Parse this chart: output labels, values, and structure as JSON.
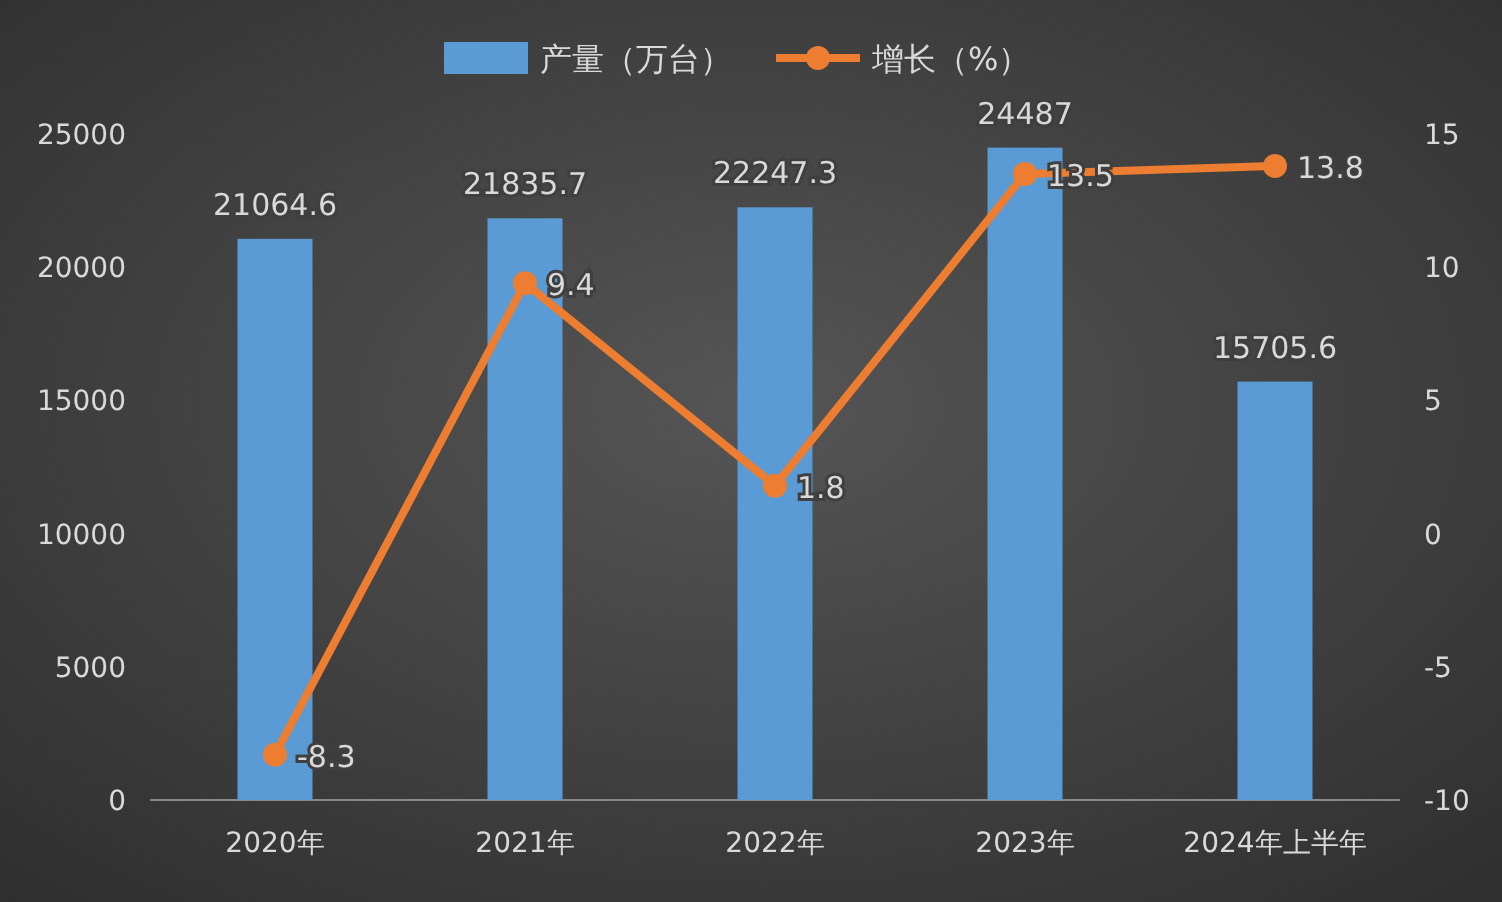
{
  "chart_data": {
    "type": "bar",
    "categories": [
      "2020年",
      "2021年",
      "2022年",
      "2023年",
      "2024年上半年"
    ],
    "series": [
      {
        "name": "产量（万台）",
        "color": "#5b9bd5",
        "values": [
          21064.6,
          21835.7,
          22247.3,
          24487,
          15705.6
        ]
      },
      {
        "name": "增长（%）",
        "type": "line",
        "axis": "y2",
        "color": "#ed7d31",
        "marker": "circle",
        "values": [
          -8.3,
          9.4,
          1.8,
          13.5,
          13.8
        ]
      }
    ],
    "ylim": [
      0,
      25000
    ],
    "yticks": [
      0,
      5000,
      10000,
      15000,
      20000,
      25000
    ],
    "y2lim": [
      -10,
      15
    ],
    "y2ticks": [
      -10,
      -5,
      0,
      5,
      10,
      15
    ],
    "data_labels": true,
    "legend": "top"
  }
}
